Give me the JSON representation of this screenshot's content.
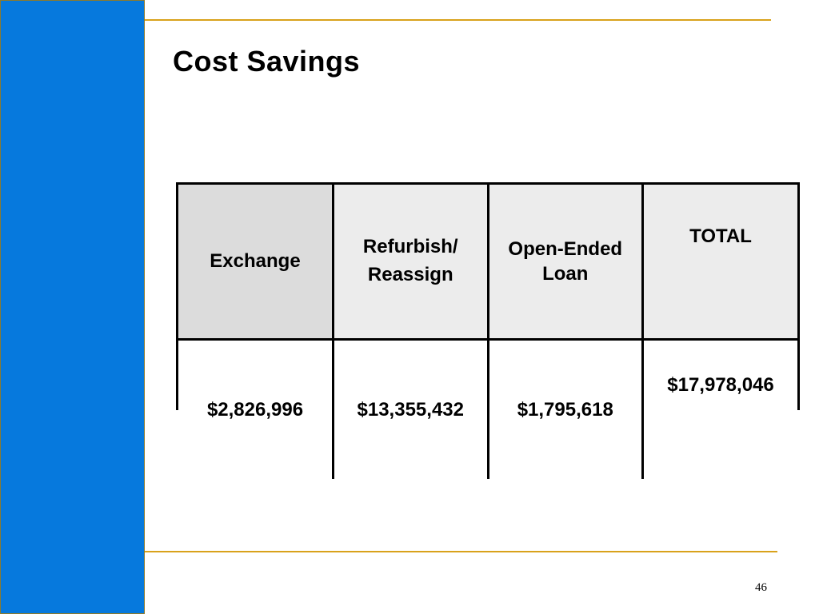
{
  "slide": {
    "title": "Cost Savings",
    "page_number": "46",
    "colors": {
      "side_bar": "#0679dd",
      "side_bar_border": "#8b7a2e",
      "rules": "#d9a21b",
      "header_cell": "#ececec",
      "first_header_cell": "#dcdcdc"
    }
  },
  "table": {
    "headers": {
      "exchange": "Exchange",
      "refurbish_line1": "Refurbish/",
      "refurbish_line2": "Reassign",
      "open_ended_line1": "Open-Ended",
      "open_ended_line2": "Loan",
      "total": "TOTAL"
    },
    "values": {
      "exchange": "$2,826,996",
      "refurbish": "$13,355,432",
      "open_ended": "$1,795,618",
      "total": "$17,978,046"
    }
  }
}
